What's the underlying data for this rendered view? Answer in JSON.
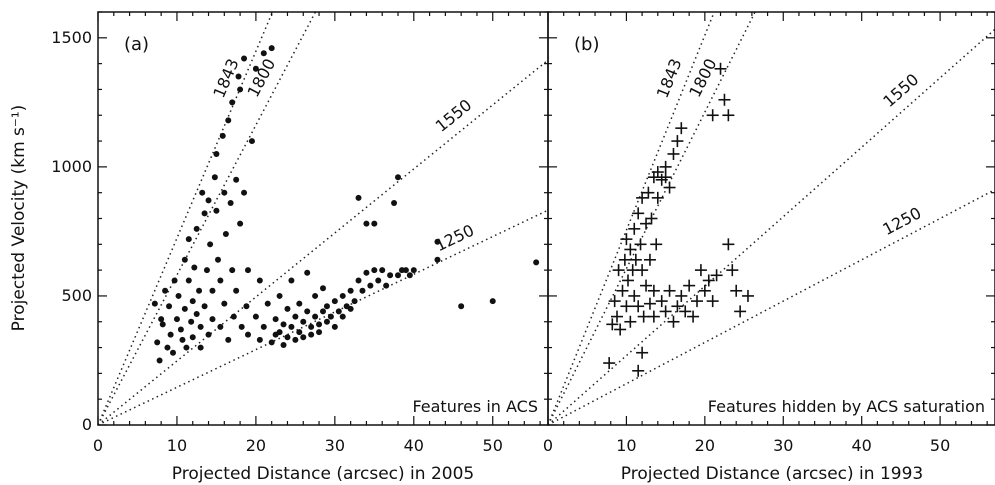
{
  "chart_data": [
    {
      "type": "scatter",
      "panel_label": "(a)",
      "xlabel": "Projected Distance (arcsec) in 2005",
      "ylabel": "Projected Velocity (km s⁻¹)",
      "annotation": "Features in ACS",
      "xlim": [
        0,
        57
      ],
      "ylim": [
        0,
        1600
      ],
      "xticks": [
        "0",
        "10",
        "20",
        "30",
        "40",
        "50"
      ],
      "yticks": [
        "0",
        "500",
        "1000",
        "1500"
      ],
      "marker": "filled-circle",
      "age_lines": [
        {
          "label": "1843",
          "slope": 72.4
        },
        {
          "label": "1800",
          "slope": 58.1
        },
        {
          "label": "1550",
          "slope": 24.8
        },
        {
          "label": "1250",
          "slope": 14.6
        }
      ],
      "points": [
        [
          7.2,
          470
        ],
        [
          7.5,
          320
        ],
        [
          7.8,
          250
        ],
        [
          8.0,
          410
        ],
        [
          8.2,
          390
        ],
        [
          8.5,
          520
        ],
        [
          8.8,
          300
        ],
        [
          9.0,
          460
        ],
        [
          9.2,
          350
        ],
        [
          9.5,
          280
        ],
        [
          9.7,
          560
        ],
        [
          10.0,
          410
        ],
        [
          10.2,
          500
        ],
        [
          10.5,
          370
        ],
        [
          10.7,
          330
        ],
        [
          11.0,
          640
        ],
        [
          11.0,
          450
        ],
        [
          11.2,
          300
        ],
        [
          11.5,
          720
        ],
        [
          11.5,
          560
        ],
        [
          11.8,
          400
        ],
        [
          12.0,
          480
        ],
        [
          12.0,
          340
        ],
        [
          12.2,
          610
        ],
        [
          12.5,
          760
        ],
        [
          12.5,
          430
        ],
        [
          12.8,
          520
        ],
        [
          13.0,
          380
        ],
        [
          13.0,
          300
        ],
        [
          13.2,
          900
        ],
        [
          13.5,
          820
        ],
        [
          13.5,
          460
        ],
        [
          13.8,
          600
        ],
        [
          14.0,
          350
        ],
        [
          14.0,
          870
        ],
        [
          14.2,
          700
        ],
        [
          14.5,
          520
        ],
        [
          14.5,
          410
        ],
        [
          14.8,
          960
        ],
        [
          15.0,
          1050
        ],
        [
          15.0,
          830
        ],
        [
          15.2,
          640
        ],
        [
          15.5,
          380
        ],
        [
          15.5,
          560
        ],
        [
          15.8,
          1120
        ],
        [
          16.0,
          900
        ],
        [
          16.0,
          470
        ],
        [
          16.2,
          740
        ],
        [
          16.5,
          1180
        ],
        [
          16.5,
          330
        ],
        [
          16.8,
          860
        ],
        [
          17.0,
          1250
        ],
        [
          17.0,
          600
        ],
        [
          17.2,
          420
        ],
        [
          17.5,
          950
        ],
        [
          17.5,
          520
        ],
        [
          17.8,
          1350
        ],
        [
          18.0,
          1300
        ],
        [
          18.0,
          780
        ],
        [
          18.2,
          380
        ],
        [
          18.5,
          1420
        ],
        [
          18.5,
          900
        ],
        [
          18.8,
          460
        ],
        [
          19.0,
          350
        ],
        [
          19.0,
          600
        ],
        [
          19.5,
          1100
        ],
        [
          20.0,
          420
        ],
        [
          20.0,
          1380
        ],
        [
          20.5,
          330
        ],
        [
          20.5,
          560
        ],
        [
          21.0,
          1440
        ],
        [
          21.0,
          380
        ],
        [
          21.5,
          470
        ],
        [
          22.0,
          1460
        ],
        [
          22.0,
          320
        ],
        [
          22.5,
          410
        ],
        [
          22.5,
          350
        ],
        [
          23.0,
          500
        ],
        [
          23.0,
          360
        ],
        [
          23.5,
          390
        ],
        [
          23.5,
          310
        ],
        [
          24.0,
          450
        ],
        [
          24.0,
          340
        ],
        [
          24.5,
          380
        ],
        [
          24.5,
          560
        ],
        [
          25.0,
          420
        ],
        [
          25.0,
          330
        ],
        [
          25.5,
          360
        ],
        [
          25.5,
          470
        ],
        [
          26.0,
          400
        ],
        [
          26.0,
          340
        ],
        [
          26.5,
          440
        ],
        [
          26.5,
          590
        ],
        [
          27.0,
          380
        ],
        [
          27.0,
          350
        ],
        [
          27.5,
          420
        ],
        [
          27.5,
          500
        ],
        [
          28.0,
          390
        ],
        [
          28.0,
          360
        ],
        [
          28.5,
          440
        ],
        [
          28.5,
          530
        ],
        [
          29.0,
          400
        ],
        [
          29.0,
          460
        ],
        [
          29.5,
          420
        ],
        [
          30.0,
          480
        ],
        [
          30.0,
          380
        ],
        [
          30.5,
          440
        ],
        [
          31.0,
          500
        ],
        [
          31.0,
          420
        ],
        [
          31.5,
          460
        ],
        [
          32.0,
          520
        ],
        [
          32.0,
          450
        ],
        [
          32.5,
          480
        ],
        [
          33.0,
          560
        ],
        [
          33.0,
          880
        ],
        [
          33.5,
          520
        ],
        [
          34.0,
          590
        ],
        [
          34.0,
          780
        ],
        [
          34.5,
          540
        ],
        [
          35.0,
          600
        ],
        [
          35.0,
          780
        ],
        [
          35.5,
          560
        ],
        [
          36.0,
          600
        ],
        [
          36.5,
          540
        ],
        [
          37.0,
          580
        ],
        [
          37.5,
          860
        ],
        [
          38.0,
          580
        ],
        [
          38.0,
          960
        ],
        [
          38.5,
          600
        ],
        [
          39.0,
          600
        ],
        [
          39.5,
          580
        ],
        [
          40.0,
          600
        ],
        [
          43.0,
          640
        ],
        [
          43.0,
          710
        ],
        [
          46.0,
          460
        ],
        [
          50.0,
          480
        ],
        [
          55.5,
          630
        ]
      ]
    },
    {
      "type": "scatter",
      "panel_label": "(b)",
      "xlabel": "Projected Distance (arcsec) in 1993",
      "annotation": "Features hidden by ACS saturation",
      "xlim": [
        0,
        57
      ],
      "ylim": [
        0,
        1600
      ],
      "xticks": [
        "0",
        "10",
        "20",
        "30",
        "40",
        "50"
      ],
      "marker": "plus",
      "age_lines": [
        {
          "label": "1843",
          "slope": 75.5
        },
        {
          "label": "1800",
          "slope": 60.6
        },
        {
          "label": "1550",
          "slope": 26.9
        },
        {
          "label": "1250",
          "slope": 16.0
        }
      ],
      "points": [
        [
          7.8,
          240
        ],
        [
          8.2,
          390
        ],
        [
          8.5,
          480
        ],
        [
          8.8,
          420
        ],
        [
          9.0,
          600
        ],
        [
          9.2,
          370
        ],
        [
          9.5,
          520
        ],
        [
          9.8,
          640
        ],
        [
          10.0,
          460
        ],
        [
          10.0,
          720
        ],
        [
          10.2,
          560
        ],
        [
          10.5,
          680
        ],
        [
          10.5,
          400
        ],
        [
          10.8,
          600
        ],
        [
          11.0,
          760
        ],
        [
          11.0,
          500
        ],
        [
          11.2,
          640
        ],
        [
          11.5,
          820
        ],
        [
          11.5,
          460
        ],
        [
          11.8,
          700
        ],
        [
          12.0,
          880
        ],
        [
          12.0,
          600
        ],
        [
          12.2,
          420
        ],
        [
          12.5,
          780
        ],
        [
          12.5,
          540
        ],
        [
          12.8,
          900
        ],
        [
          13.0,
          640
        ],
        [
          13.0,
          470
        ],
        [
          13.2,
          800
        ],
        [
          13.5,
          960
        ],
        [
          13.5,
          520
        ],
        [
          13.8,
          700
        ],
        [
          14.0,
          880
        ],
        [
          14.0,
          980
        ],
        [
          14.5,
          950
        ],
        [
          15.0,
          1000
        ],
        [
          15.0,
          960
        ],
        [
          15.5,
          920
        ],
        [
          16.0,
          1050
        ],
        [
          16.5,
          1100
        ],
        [
          17.0,
          1150
        ],
        [
          12.0,
          280
        ],
        [
          11.5,
          210
        ],
        [
          13.5,
          420
        ],
        [
          14.5,
          480
        ],
        [
          15.0,
          440
        ],
        [
          15.5,
          520
        ],
        [
          16.0,
          400
        ],
        [
          16.5,
          460
        ],
        [
          17.0,
          500
        ],
        [
          17.5,
          440
        ],
        [
          18.0,
          540
        ],
        [
          18.5,
          420
        ],
        [
          19.0,
          480
        ],
        [
          19.5,
          600
        ],
        [
          20.0,
          520
        ],
        [
          20.5,
          560
        ],
        [
          21.0,
          480
        ],
        [
          21.5,
          580
        ],
        [
          22.0,
          1380
        ],
        [
          22.5,
          1260
        ],
        [
          23.0,
          1200
        ],
        [
          23.0,
          700
        ],
        [
          23.5,
          600
        ],
        [
          24.0,
          520
        ],
        [
          24.5,
          440
        ],
        [
          25.5,
          500
        ],
        [
          21.0,
          1200
        ]
      ]
    }
  ]
}
